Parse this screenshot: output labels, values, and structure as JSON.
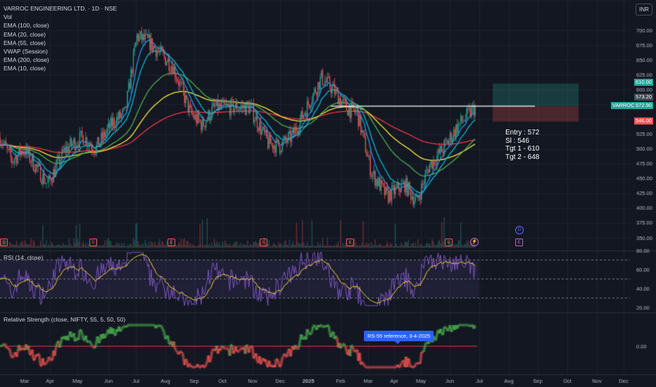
{
  "legend": {
    "title": "VARROC ENGINEERING LTD. · 1D · NSE",
    "items": [
      "Vol",
      "EMA (100, close)",
      "EMA (20, close)",
      "EMA (55, close)",
      "VWAP (Session)",
      "EMA (200, close)",
      "EMA (10, close)"
    ]
  },
  "currency": "INR",
  "price_axis": {
    "ticks": [
      "750.00",
      "700.00",
      "675.00",
      "650.00",
      "625.00",
      "600.00",
      "575.00",
      "550.00",
      "525.00",
      "500.00",
      "475.00",
      "450.00",
      "425.00",
      "400.00",
      "375.00",
      "350.00"
    ],
    "labels": {
      "tgt": "610.00",
      "last_high": "573.20",
      "symbol": "VARROC",
      "last": "572.90",
      "sl": "546.00"
    }
  },
  "rsi": {
    "title": "RSI (14, close)",
    "ticks": [
      "80.00",
      "60.00",
      "40.00",
      "20.00"
    ]
  },
  "rs": {
    "title": "Relative Strength (close, NIFTY, 55, 5, 50, 50)",
    "ticks": [
      "0.00"
    ],
    "annotation": "RS-55 reference, 3-4-2025"
  },
  "time_axis": [
    "Mar",
    "Apr",
    "May",
    "Jun",
    "Jul",
    "Aug",
    "Sep",
    "Oct",
    "Nov",
    "Dec",
    "2025",
    "Feb",
    "Mar",
    "Apr",
    "May",
    "Jun",
    "Jul",
    "Aug",
    "Sep",
    "Oct",
    "Nov",
    "Dec"
  ],
  "trade_note": [
    "Entry : 572",
    "Sl : 546",
    "Tgt 1 - 610",
    "Tgt 2 - 648"
  ],
  "events": [
    "E",
    "E",
    "E",
    "E",
    "E",
    "E"
  ],
  "colors": {
    "bg": "#131722",
    "up": "#26a69a",
    "down": "#ef5350",
    "ema10": "#2196f3",
    "ema20": "#00bcd4",
    "ema55": "#4caf50",
    "ema100": "#ffeb3b",
    "ema200": "#f23645",
    "rsi": "#7e57c2"
  },
  "chart_data": {
    "type": "candlestick",
    "title": "VARROC ENGINEERING LTD. · 1D · NSE",
    "ylim": [
      340,
      760
    ],
    "x_months": [
      "Mar",
      "Apr",
      "May",
      "Jun",
      "Jul",
      "Aug",
      "Sep",
      "Oct",
      "Nov",
      "Dec",
      "2025",
      "Feb",
      "Mar",
      "Apr",
      "May",
      "Jun"
    ],
    "closes_monthly_approx": [
      470,
      510,
      500,
      690,
      650,
      540,
      560,
      570,
      510,
      540,
      640,
      560,
      430,
      400,
      500,
      572
    ],
    "trade_levels": {
      "entry": 572,
      "stop_loss": 546,
      "target1": 610,
      "target2": 648
    },
    "rsi_ylim": [
      20,
      80
    ],
    "rsi_bands": [
      70,
      50,
      30
    ],
    "rs_reference": 0.0
  }
}
